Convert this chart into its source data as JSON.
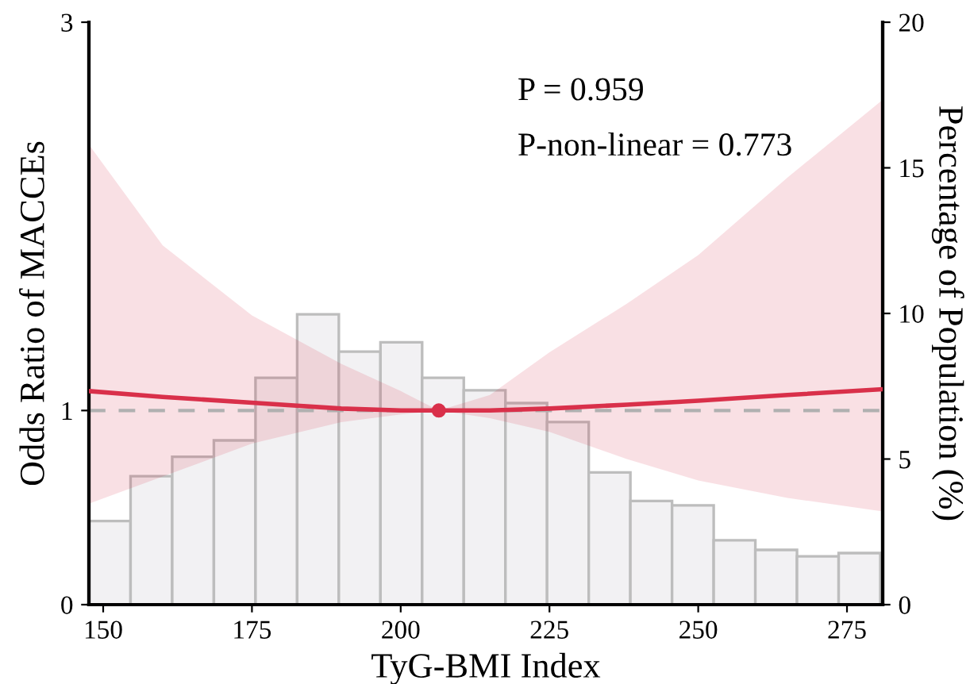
{
  "chart_data": {
    "type": "line",
    "xlabel": "TyG-BMI Index",
    "ylabel": "Odds Ratio of MACCEs",
    "y2label": "Percentage of Population (%)",
    "xlim": [
      147.6,
      281
    ],
    "xticks": [
      150,
      175,
      200,
      225,
      250,
      275
    ],
    "ylim": [
      0,
      3
    ],
    "yticks": [
      0,
      1,
      3
    ],
    "y2lim": [
      0,
      20
    ],
    "y2ticks": [
      0,
      5,
      10,
      15,
      20
    ],
    "grid": false,
    "legend": false,
    "annotations": [
      "P = 0.959",
      "P-non-linear = 0.773"
    ],
    "ref_lines": [
      {
        "axis": "y",
        "value": 1,
        "color": "#b0b0b0",
        "line_style": "dashed"
      }
    ],
    "series": [
      {
        "type": "histogram",
        "axis": "y2",
        "color": "#f2f1f3",
        "bins": [
          147.6,
          154.6,
          161.6,
          168.6,
          175.6,
          182.6,
          189.6,
          196.6,
          203.6,
          210.6,
          217.6,
          224.6,
          231.6,
          238.6,
          245.6,
          252.6,
          259.6,
          266.6,
          273.6,
          280.6
        ],
        "values": [
          2.87,
          4.41,
          5.08,
          5.64,
          7.79,
          9.97,
          8.69,
          9.01,
          7.79,
          7.36,
          6.92,
          6.27,
          4.54,
          3.56,
          3.41,
          2.21,
          1.88,
          1.66,
          1.77
        ]
      },
      {
        "color": "#d9304a",
        "x": [
          147.6,
          160,
          175,
          190,
          200,
          206.4,
          215,
          225,
          238,
          250,
          265,
          281
        ],
        "values": [
          1.1,
          1.07,
          1.04,
          1.01,
          1.0,
          1.0,
          1.0,
          1.01,
          1.03,
          1.05,
          1.08,
          1.11
        ],
        "lower": [
          0.52,
          0.66,
          0.83,
          0.94,
          0.98,
          1.0,
          0.96,
          0.89,
          0.75,
          0.64,
          0.55,
          0.48
        ],
        "upper": [
          2.37,
          1.85,
          1.49,
          1.24,
          1.1,
          1.0,
          1.08,
          1.3,
          1.55,
          1.8,
          2.2,
          2.6
        ]
      },
      {
        "type": "scatter",
        "color": "#d9304a",
        "marker": "circle",
        "x": [
          206.4
        ],
        "values": [
          1.0
        ]
      }
    ]
  }
}
